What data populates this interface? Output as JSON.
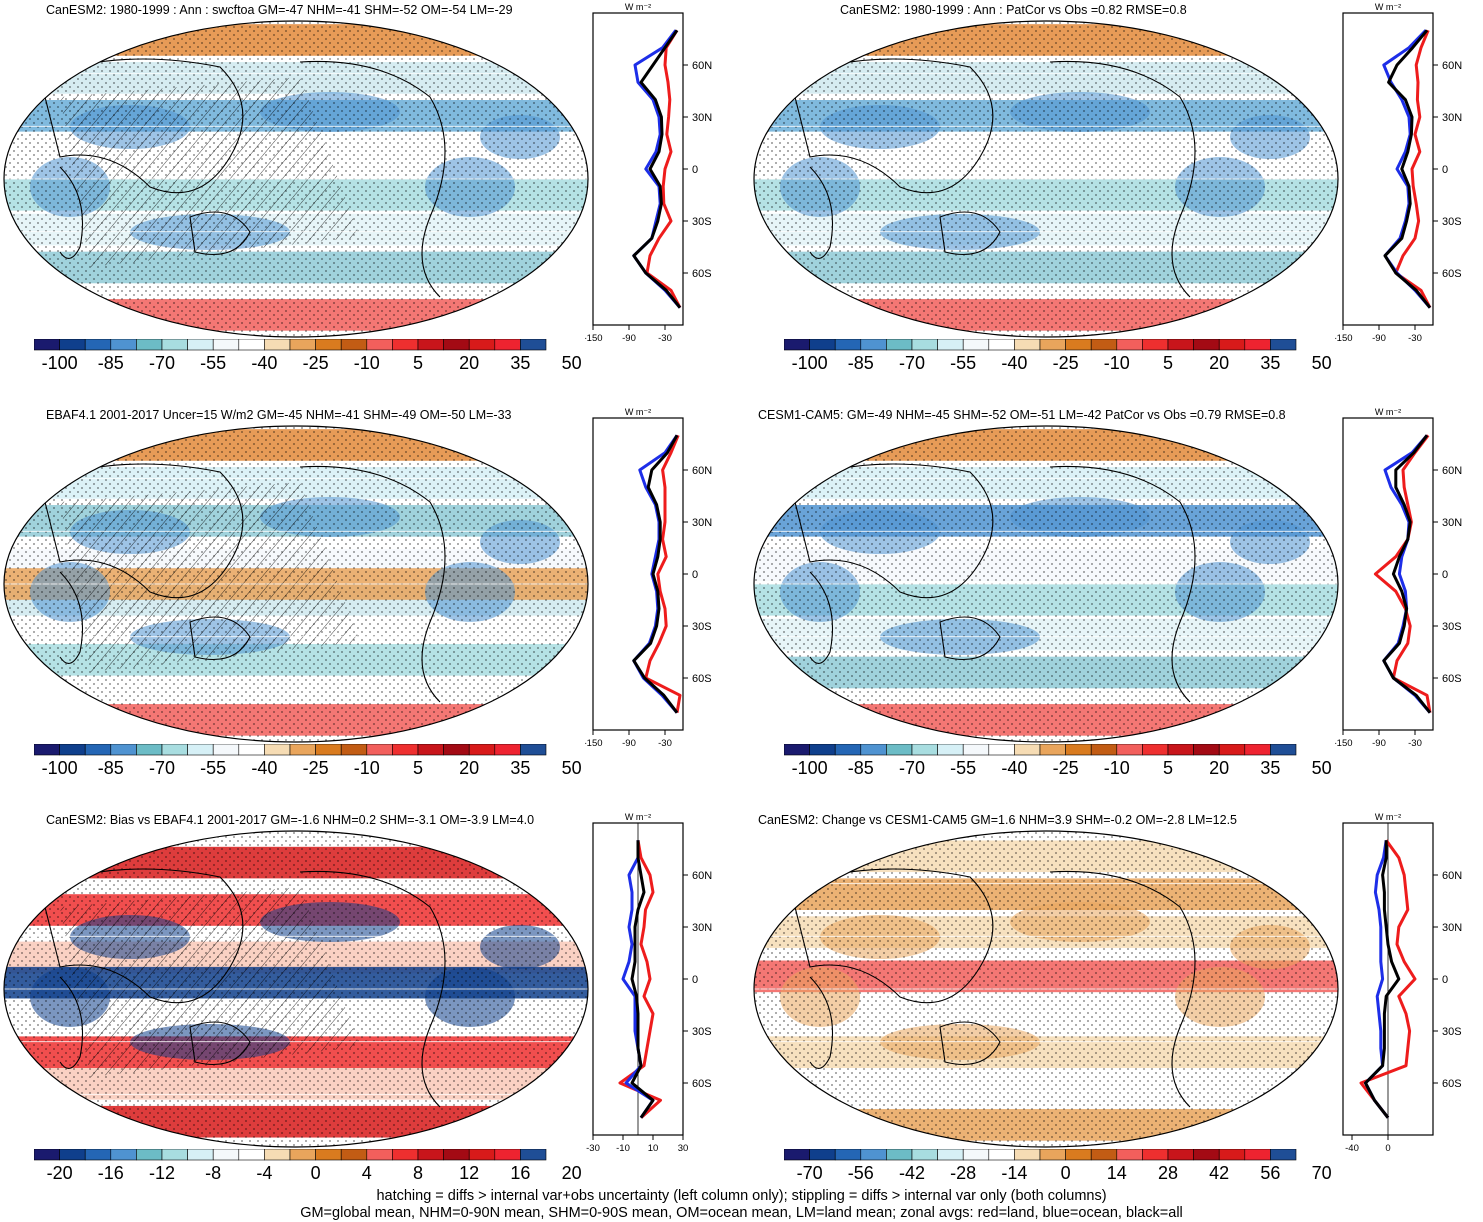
{
  "footer": {
    "line1": "hatching = diffs > internal var+obs uncertainty (left column only); stippling = diffs > internal var only (both columns)",
    "line2": "GM=global mean, NHM=0-90N mean, SHM=0-90S mean, OM=ocean mean, LM=land mean; zonal avgs: red=land, blue=ocean, black=all"
  },
  "units_label": "W m⁻²",
  "lat_ticks": [
    "60N",
    "30N",
    "0",
    "30S",
    "60S"
  ],
  "chart_data": [
    {
      "id": "p1",
      "type": "map",
      "palette": "main",
      "title": "CanESM2: 1980-1999 : Ann : swcftoa GM=-47 NHM=-41 SHM=-52 OM=-54 LM=-29",
      "colorbar_labels": [
        "-100",
        "-85",
        "-70",
        "-55",
        "-40",
        "-25",
        "-10",
        "5",
        "20",
        "35",
        "50"
      ],
      "zonal_xticks": [
        "-150",
        "-90",
        "-30"
      ],
      "zonal_xlim": [
        -150,
        0
      ],
      "zonal": {
        "lat": [
          80,
          70,
          60,
          50,
          40,
          30,
          20,
          10,
          0,
          -10,
          -20,
          -30,
          -40,
          -50,
          -60,
          -70,
          -80
        ],
        "land": [
          -10,
          -28,
          -30,
          -25,
          -22,
          -24,
          -27,
          -20,
          -30,
          -33,
          -32,
          -20,
          -40,
          -55,
          -60,
          -20,
          -5
        ],
        "ocean": [
          -12,
          -34,
          -80,
          -75,
          -50,
          -40,
          -38,
          -45,
          -62,
          -40,
          -38,
          -45,
          -52,
          -82,
          -62,
          -30,
          -5
        ],
        "all": [
          -10,
          -30,
          -50,
          -70,
          -46,
          -36,
          -35,
          -40,
          -55,
          -38,
          -36,
          -42,
          -52,
          -82,
          -62,
          -28,
          -5
        ]
      }
    },
    {
      "id": "p2",
      "type": "map",
      "palette": "main",
      "title": "CanESM2: 1980-1999 : Ann : PatCor vs Obs =0.82 RMSE=0.8",
      "colorbar_labels": [
        "-100",
        "-85",
        "-70",
        "-55",
        "-40",
        "-25",
        "-10",
        "5",
        "20",
        "35",
        "50"
      ],
      "zonal_xticks": [
        "-150",
        "-90",
        "-30"
      ],
      "zonal_xlim": [
        -150,
        0
      ],
      "zonal": {
        "lat": [
          80,
          70,
          60,
          50,
          40,
          30,
          20,
          10,
          0,
          -10,
          -20,
          -30,
          -40,
          -50,
          -60,
          -70,
          -80
        ],
        "land": [
          -8,
          -20,
          -28,
          -25,
          -26,
          -22,
          -30,
          -22,
          -35,
          -33,
          -28,
          -24,
          -30,
          -50,
          -62,
          -20,
          -5
        ],
        "ocean": [
          -12,
          -40,
          -82,
          -70,
          -52,
          -40,
          -38,
          -46,
          -60,
          -42,
          -40,
          -46,
          -55,
          -80,
          -60,
          -30,
          -5
        ],
        "all": [
          -10,
          -34,
          -60,
          -74,
          -46,
          -35,
          -36,
          -42,
          -52,
          -40,
          -38,
          -44,
          -52,
          -80,
          -62,
          -28,
          -5
        ]
      }
    },
    {
      "id": "p3",
      "type": "map",
      "palette": "main",
      "title": "EBAF4.1 2001-2017 Uncer=15 W/m2 GM=-45 NHM=-41 SHM=-49 OM=-50 LM=-33",
      "colorbar_labels": [
        "-100",
        "-85",
        "-70",
        "-55",
        "-40",
        "-25",
        "-10",
        "5",
        "20",
        "35",
        "50"
      ],
      "zonal_xticks": [
        "-150",
        "-90",
        "-30"
      ],
      "zonal_xlim": [
        -150,
        0
      ],
      "zonal": {
        "lat": [
          80,
          70,
          60,
          50,
          40,
          30,
          20,
          10,
          0,
          -10,
          -20,
          -30,
          -40,
          -50,
          -60,
          -70,
          -80
        ],
        "land": [
          -8,
          -20,
          -34,
          -30,
          -30,
          -30,
          -34,
          -28,
          -42,
          -38,
          -30,
          -28,
          -40,
          -55,
          -62,
          -5,
          -10
        ],
        "ocean": [
          -10,
          -30,
          -72,
          -62,
          -46,
          -40,
          -40,
          -46,
          -52,
          -44,
          -42,
          -46,
          -56,
          -82,
          -66,
          -35,
          -10
        ],
        "all": [
          -10,
          -26,
          -52,
          -58,
          -44,
          -38,
          -38,
          -42,
          -50,
          -42,
          -40,
          -44,
          -54,
          -82,
          -64,
          -32,
          -10
        ]
      }
    },
    {
      "id": "p4",
      "type": "map",
      "palette": "main",
      "title": "CESM1-CAM5: GM=-49 NHM=-45 SHM=-52 OM=-51 LM=-42 PatCor vs Obs =0.79 RMSE=0.8",
      "colorbar_labels": [
        "-100",
        "-85",
        "-70",
        "-55",
        "-40",
        "-25",
        "-10",
        "5",
        "20",
        "35",
        "50"
      ],
      "zonal_xticks": [
        "-150",
        "-90",
        "-30"
      ],
      "zonal_xlim": [
        -150,
        0
      ],
      "zonal": {
        "lat": [
          80,
          70,
          60,
          50,
          40,
          30,
          20,
          10,
          0,
          -10,
          -20,
          -30,
          -40,
          -50,
          -60,
          -70,
          -80
        ],
        "land": [
          -8,
          -30,
          -50,
          -48,
          -42,
          -36,
          -42,
          -62,
          -96,
          -62,
          -46,
          -38,
          -42,
          -60,
          -66,
          -10,
          -5
        ],
        "ocean": [
          -10,
          -35,
          -80,
          -70,
          -52,
          -40,
          -42,
          -52,
          -56,
          -46,
          -44,
          -50,
          -58,
          -82,
          -66,
          -30,
          -5
        ],
        "all": [
          -10,
          -32,
          -62,
          -62,
          -48,
          -38,
          -42,
          -56,
          -66,
          -52,
          -44,
          -48,
          -56,
          -82,
          -66,
          -28,
          -5
        ]
      }
    },
    {
      "id": "p5",
      "type": "map",
      "palette": "bias",
      "title": "CanESM2: Bias vs EBAF4.1 2001-2017 GM=-1.6 NHM=0.2 SHM=-3.1 OM=-3.9 LM=4.0",
      "colorbar_labels": [
        "-20",
        "-16",
        "-12",
        "-8",
        "-4",
        "0",
        "4",
        "8",
        "12",
        "16",
        "20"
      ],
      "zonal_xticks": [
        "-30",
        "-10",
        "10",
        "30"
      ],
      "zonal_xlim": [
        -30,
        30
      ],
      "zonal": {
        "lat": [
          80,
          70,
          60,
          50,
          40,
          30,
          20,
          10,
          0,
          -10,
          -20,
          -30,
          -40,
          -50,
          -60,
          -70,
          -80
        ],
        "land": [
          0,
          2,
          8,
          10,
          5,
          4,
          2,
          6,
          8,
          4,
          10,
          8,
          6,
          4,
          -12,
          15,
          2
        ],
        "ocean": [
          0,
          0,
          -6,
          -4,
          -4,
          -6,
          -4,
          -6,
          -10,
          -2,
          -2,
          -2,
          0,
          2,
          -8,
          10,
          2
        ],
        "all": [
          0,
          0,
          2,
          4,
          0,
          -2,
          -2,
          -2,
          -4,
          -1,
          0,
          0,
          0,
          2,
          -4,
          10,
          2
        ]
      }
    },
    {
      "id": "p6",
      "type": "map",
      "palette": "change",
      "title": "CanESM2: Change vs CESM1-CAM5 GM=1.6 NHM=3.9 SHM=-0.2 OM=-2.8 LM=12.5",
      "colorbar_labels": [
        "-70",
        "-56",
        "-42",
        "-28",
        "-14",
        "0",
        "14",
        "28",
        "42",
        "56",
        "70"
      ],
      "zonal_xticks": [
        "-40",
        "0"
      ],
      "zonal_xlim": [
        -50,
        50
      ],
      "zonal": {
        "lat": [
          80,
          70,
          60,
          50,
          40,
          30,
          20,
          10,
          0,
          -10,
          -20,
          -30,
          -40,
          -50,
          -60,
          -70,
          -80
        ],
        "land": [
          -2,
          12,
          18,
          20,
          22,
          12,
          10,
          18,
          30,
          12,
          20,
          24,
          22,
          20,
          -30,
          -15,
          0
        ],
        "ocean": [
          -2,
          -5,
          -12,
          -14,
          -10,
          -8,
          -8,
          -8,
          -6,
          -12,
          -10,
          -8,
          -8,
          -6,
          -25,
          -15,
          0
        ],
        "all": [
          -2,
          -2,
          -6,
          -4,
          -4,
          -2,
          0,
          4,
          12,
          -2,
          -4,
          -4,
          -4,
          -6,
          -25,
          -15,
          0
        ]
      }
    }
  ]
}
